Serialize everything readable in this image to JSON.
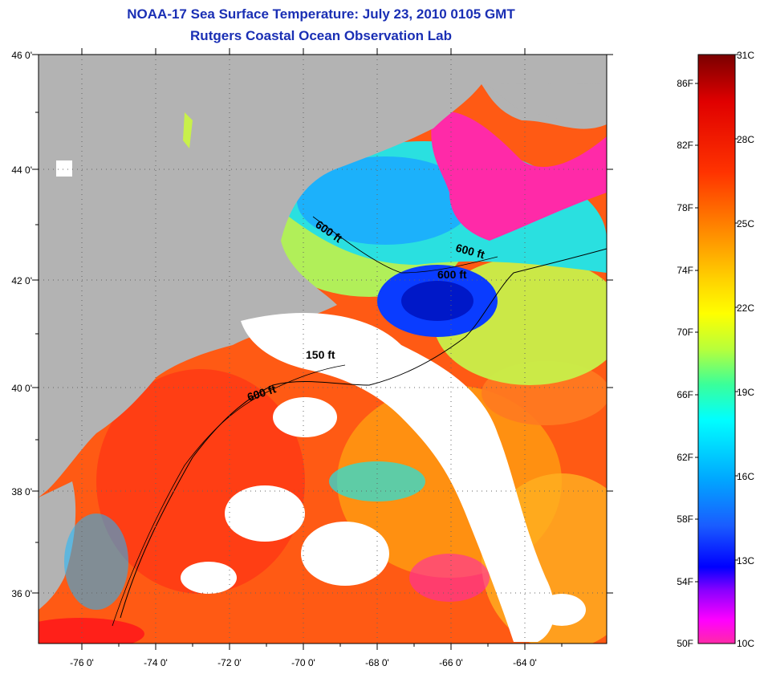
{
  "title_line1": "NOAA-17 Sea Surface Temperature:  July 23, 2010 0105 GMT",
  "title_line2": "Rutgers Coastal Ocean Observation Lab",
  "map": {
    "lat_labels": [
      "46 0'",
      "44 0'",
      "42 0'",
      "40 0'",
      "38 0'",
      "36 0'"
    ],
    "lon_labels": [
      "-76 0'",
      "-74 0'",
      "-72 0'",
      "-70 0'",
      "-68 0'",
      "-66 0'",
      "-64 0'"
    ],
    "contour_labels": [
      "600 ft",
      "600 ft",
      "600 ft",
      "150 ft",
      "600 ft"
    ],
    "colors": {
      "land": "#b3b3b3",
      "cloud": "#ffffff",
      "warm": "#ff3a1a",
      "warm_orange": "#ff8a10",
      "cool_green": "#c8f04a",
      "cool_cyan": "#19e6e6",
      "cold_blue": "#1a4cff",
      "coldest_magenta": "#ff1fa8"
    }
  },
  "colorbar": {
    "fahrenheit_labels": [
      "86F",
      "82F",
      "78F",
      "74F",
      "70F",
      "66F",
      "62F",
      "58F",
      "54F",
      "50F"
    ],
    "celsius_labels": [
      "31C",
      "28C",
      "25C",
      "22C",
      "19C",
      "16C",
      "13C",
      "10C"
    ],
    "gradient": [
      "#7a0000",
      "#e00000",
      "#ff3300",
      "#ff7a00",
      "#ffcc00",
      "#ffff00",
      "#b8ff3a",
      "#3aff9a",
      "#00ffff",
      "#00a8ff",
      "#1a5cff",
      "#0000ff",
      "#8a00ff",
      "#ff00ff",
      "#ff2aa8"
    ]
  }
}
